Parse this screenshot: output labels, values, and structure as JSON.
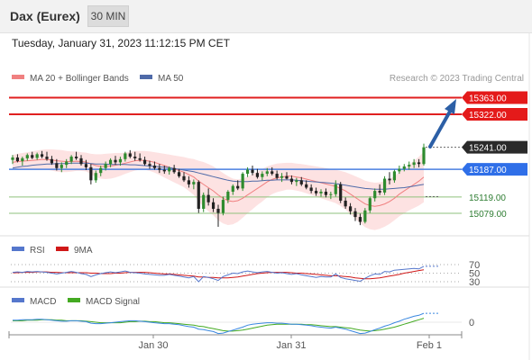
{
  "header": {
    "instrument": "Dax (Eurex)",
    "timeframe": "30 MIN",
    "datetime": "Tuesday, January 31, 2023 11:12:15 PM CET"
  },
  "legend": {
    "ma20": "MA 20 + Bollinger Bands",
    "ma50": "MA 50",
    "credit": "Research © 2023 Trading Central",
    "rsi": "RSI",
    "rsi_ma": "9MA",
    "macd": "MACD",
    "macd_signal": "MACD Signal"
  },
  "colors": {
    "up": "#2e8b2e",
    "down": "#222222",
    "resistance": "#e02020",
    "ma20": "#f08080",
    "ma50": "#4f6aa8",
    "band": "#fde2e2",
    "support": "#8fc27c",
    "blue_level": "#4a7fe0",
    "arrow": "#2c5fa6",
    "rsi": "#5577cc",
    "rsi_ma": "#d01818",
    "macd": "#3a88e0",
    "macd_signal": "#44aa22"
  },
  "chart_data": [
    {
      "type": "candlestick",
      "title": "Dax (Eurex)",
      "x_tick_labels": [
        "Jan 30",
        "Jan 31",
        "Feb 1"
      ],
      "ylim": [
        15020,
        15385
      ],
      "levels": [
        {
          "label": "15363.00",
          "value": 15363,
          "kind": "resistance"
        },
        {
          "label": "15322.00",
          "value": 15322,
          "kind": "resistance"
        },
        {
          "label": "15241.00",
          "value": 15241,
          "kind": "last"
        },
        {
          "label": "15187.00",
          "value": 15187,
          "kind": "pivot"
        },
        {
          "label": "15119.00",
          "value": 15119,
          "kind": "support"
        },
        {
          "label": "15079.00",
          "value": 15079,
          "kind": "support"
        }
      ],
      "candles": [
        [
          15210,
          15222,
          15200,
          15216
        ],
        [
          15216,
          15224,
          15204,
          15207
        ],
        [
          15207,
          15218,
          15196,
          15214
        ],
        [
          15214,
          15226,
          15208,
          15222
        ],
        [
          15222,
          15230,
          15212,
          15215
        ],
        [
          15215,
          15228,
          15210,
          15224
        ],
        [
          15224,
          15232,
          15214,
          15218
        ],
        [
          15218,
          15230,
          15208,
          15212
        ],
        [
          15212,
          15220,
          15198,
          15202
        ],
        [
          15202,
          15212,
          15184,
          15190
        ],
        [
          15190,
          15204,
          15180,
          15198
        ],
        [
          15198,
          15212,
          15190,
          15206
        ],
        [
          15206,
          15222,
          15200,
          15218
        ],
        [
          15218,
          15230,
          15210,
          15214
        ],
        [
          15214,
          15222,
          15196,
          15200
        ],
        [
          15200,
          15210,
          15185,
          15192
        ],
        [
          15192,
          15200,
          15150,
          15160
        ],
        [
          15160,
          15184,
          15154,
          15178
        ],
        [
          15178,
          15196,
          15170,
          15190
        ],
        [
          15190,
          15206,
          15184,
          15200
        ],
        [
          15200,
          15214,
          15192,
          15210
        ],
        [
          15210,
          15220,
          15198,
          15204
        ],
        [
          15204,
          15218,
          15196,
          15212
        ],
        [
          15212,
          15230,
          15206,
          15226
        ],
        [
          15226,
          15234,
          15214,
          15218
        ],
        [
          15218,
          15230,
          15208,
          15214
        ],
        [
          15214,
          15226,
          15206,
          15210
        ],
        [
          15210,
          15218,
          15196,
          15200
        ],
        [
          15200,
          15208,
          15188,
          15196
        ],
        [
          15196,
          15206,
          15186,
          15190
        ],
        [
          15190,
          15200,
          15178,
          15186
        ],
        [
          15186,
          15196,
          15176,
          15182
        ],
        [
          15182,
          15194,
          15174,
          15190
        ],
        [
          15190,
          15198,
          15176,
          15180
        ],
        [
          15180,
          15188,
          15166,
          15170
        ],
        [
          15170,
          15180,
          15156,
          15160
        ],
        [
          15160,
          15170,
          15142,
          15150
        ],
        [
          15150,
          15162,
          15138,
          15156
        ],
        [
          15156,
          15160,
          15080,
          15090
        ],
        [
          15090,
          15130,
          15082,
          15124
        ],
        [
          15124,
          15140,
          15098,
          15106
        ],
        [
          15106,
          15116,
          15082,
          15090
        ],
        [
          15090,
          15100,
          15046,
          15080
        ],
        [
          15080,
          15120,
          15074,
          15112
        ],
        [
          15112,
          15136,
          15104,
          15132
        ],
        [
          15132,
          15150,
          15124,
          15146
        ],
        [
          15146,
          15160,
          15136,
          15140
        ],
        [
          15140,
          15180,
          15134,
          15176
        ],
        [
          15176,
          15192,
          15168,
          15186
        ],
        [
          15186,
          15196,
          15172,
          15178
        ],
        [
          15178,
          15188,
          15164,
          15168
        ],
        [
          15168,
          15182,
          15160,
          15176
        ],
        [
          15176,
          15190,
          15170,
          15182
        ],
        [
          15182,
          15192,
          15172,
          15176
        ],
        [
          15176,
          15184,
          15162,
          15166
        ],
        [
          15166,
          15178,
          15156,
          15170
        ],
        [
          15170,
          15180,
          15162,
          15164
        ],
        [
          15164,
          15172,
          15150,
          15156
        ],
        [
          15156,
          15166,
          15146,
          15160
        ],
        [
          15160,
          15168,
          15146,
          15150
        ],
        [
          15150,
          15160,
          15138,
          15142
        ],
        [
          15142,
          15150,
          15128,
          15134
        ],
        [
          15134,
          15142,
          15122,
          15128
        ],
        [
          15128,
          15138,
          15120,
          15132
        ],
        [
          15132,
          15140,
          15118,
          15124
        ],
        [
          15124,
          15132,
          15114,
          15126
        ],
        [
          15126,
          15160,
          15120,
          15150
        ],
        [
          15150,
          15156,
          15104,
          15110
        ],
        [
          15110,
          15118,
          15090,
          15096
        ],
        [
          15096,
          15104,
          15076,
          15084
        ],
        [
          15084,
          15092,
          15060,
          15070
        ],
        [
          15070,
          15078,
          15050,
          15058
        ],
        [
          15058,
          15092,
          15054,
          15086
        ],
        [
          15086,
          15120,
          15080,
          15116
        ],
        [
          15116,
          15140,
          15108,
          15134
        ],
        [
          15134,
          15150,
          15124,
          15130
        ],
        [
          15130,
          15170,
          15124,
          15164
        ],
        [
          15164,
          15180,
          15150,
          15160
        ],
        [
          15160,
          15186,
          15154,
          15182
        ],
        [
          15182,
          15196,
          15176,
          15188
        ],
        [
          15188,
          15200,
          15182,
          15194
        ],
        [
          15194,
          15206,
          15186,
          15198
        ],
        [
          15198,
          15212,
          15190,
          15204
        ],
        [
          15204,
          15212,
          15192,
          15200
        ],
        [
          15200,
          15250,
          15196,
          15241
        ]
      ],
      "ma20": [
        15204,
        15206,
        15207,
        15208,
        15209,
        15210,
        15211,
        15211,
        15210,
        15208,
        15207,
        15206,
        15206,
        15207,
        15206,
        15205,
        15200,
        15196,
        15194,
        15194,
        15195,
        15197,
        15199,
        15202,
        15205,
        15208,
        15209,
        15209,
        15207,
        15204,
        15200,
        15196,
        15192,
        15188,
        15184,
        15180,
        15174,
        15168,
        15158,
        15150,
        15142,
        15134,
        15124,
        15116,
        15110,
        15108,
        15110,
        15116,
        15124,
        15132,
        15140,
        15148,
        15156,
        15162,
        15166,
        15168,
        15170,
        15170,
        15168,
        15166,
        15163,
        15160,
        15157,
        15154,
        15151,
        15148,
        15145,
        15140,
        15134,
        15126,
        15118,
        15110,
        15102,
        15098,
        15096,
        15098,
        15102,
        15108,
        15116,
        15126,
        15134,
        15142,
        15150,
        15158,
        15168
      ],
      "ma50": [
        15190,
        15192,
        15194,
        15195,
        15197,
        15198,
        15199,
        15200,
        15200,
        15201,
        15201,
        15201,
        15202,
        15202,
        15202,
        15202,
        15201,
        15200,
        15200,
        15200,
        15199,
        15199,
        15199,
        15199,
        15198,
        15198,
        15197,
        15196,
        15195,
        15194,
        15193,
        15192,
        15191,
        15189,
        15187,
        15185,
        15183,
        15181,
        15178,
        15175,
        15172,
        15169,
        15166,
        15163,
        15160,
        15158,
        15157,
        15157,
        15157,
        15158,
        15158,
        15159,
        15160,
        15160,
        15161,
        15161,
        15161,
        15161,
        15160,
        15159,
        15158,
        15157,
        15156,
        15155,
        15154,
        15153,
        15152,
        15150,
        15148,
        15146,
        15144,
        15142,
        15140,
        15139,
        15138,
        15138,
        15138,
        15139,
        15140,
        15141,
        15142,
        15144,
        15146,
        15148,
        15150
      ]
    },
    {
      "type": "line",
      "title": "RSI",
      "tick_labels": [
        "70",
        "50",
        "30"
      ],
      "ylim": [
        20,
        80
      ],
      "series": [
        {
          "name": "RSI",
          "values": [
            52,
            53,
            52,
            54,
            53,
            54,
            53,
            52,
            50,
            48,
            50,
            52,
            54,
            52,
            49,
            47,
            42,
            46,
            49,
            51,
            53,
            51,
            53,
            55,
            52,
            51,
            50,
            48,
            47,
            46,
            45,
            45,
            47,
            45,
            43,
            41,
            39,
            42,
            30,
            42,
            40,
            37,
            33,
            42,
            46,
            50,
            49,
            53,
            55,
            53,
            51,
            53,
            54,
            52,
            50,
            51,
            49,
            47,
            49,
            46,
            44,
            42,
            40,
            42,
            41,
            41,
            48,
            40,
            37,
            35,
            33,
            31,
            38,
            44,
            48,
            47,
            54,
            53,
            57,
            58,
            59,
            60,
            61,
            60,
            66
          ]
        },
        {
          "name": "9MA",
          "values": [
            51,
            51,
            52,
            52,
            52,
            53,
            53,
            53,
            52,
            52,
            51,
            51,
            51,
            51,
            51,
            51,
            50,
            50,
            49,
            49,
            49,
            50,
            50,
            51,
            52,
            52,
            52,
            52,
            51,
            50,
            49,
            48,
            48,
            47,
            46,
            45,
            44,
            43,
            41,
            41,
            40,
            40,
            39,
            39,
            39,
            40,
            41,
            43,
            45,
            47,
            49,
            50,
            51,
            52,
            52,
            52,
            52,
            51,
            50,
            50,
            49,
            48,
            47,
            46,
            45,
            44,
            44,
            43,
            42,
            41,
            39,
            38,
            37,
            37,
            38,
            39,
            41,
            43,
            45,
            47,
            50,
            52,
            54,
            56,
            58
          ]
        }
      ]
    },
    {
      "type": "line",
      "title": "MACD",
      "tick_labels": [
        "0"
      ],
      "ylim": [
        -40,
        40
      ],
      "series": [
        {
          "name": "MACD",
          "values": [
            4,
            4,
            5,
            5,
            5,
            6,
            6,
            5,
            4,
            3,
            2,
            2,
            3,
            3,
            2,
            1,
            -2,
            -3,
            -3,
            -2,
            -1,
            0,
            1,
            2,
            3,
            3,
            2,
            1,
            0,
            -1,
            -2,
            -3,
            -3,
            -4,
            -5,
            -7,
            -9,
            -10,
            -14,
            -15,
            -17,
            -19,
            -23,
            -22,
            -19,
            -16,
            -13,
            -10,
            -6,
            -4,
            -3,
            -2,
            -1,
            -1,
            -2,
            -2,
            -3,
            -4,
            -4,
            -5,
            -6,
            -7,
            -9,
            -10,
            -11,
            -12,
            -10,
            -12,
            -14,
            -17,
            -20,
            -23,
            -22,
            -19,
            -15,
            -12,
            -8,
            -5,
            -1,
            2,
            6,
            9,
            12,
            14,
            18
          ]
        },
        {
          "name": "MACD Signal",
          "values": [
            3,
            3,
            3,
            4,
            4,
            4,
            5,
            5,
            5,
            4,
            4,
            3,
            3,
            3,
            3,
            2,
            1,
            0,
            -1,
            -1,
            -1,
            -1,
            -1,
            0,
            1,
            1,
            2,
            2,
            1,
            1,
            0,
            -1,
            -1,
            -2,
            -3,
            -4,
            -5,
            -6,
            -8,
            -9,
            -11,
            -13,
            -15,
            -17,
            -18,
            -18,
            -17,
            -16,
            -14,
            -12,
            -10,
            -8,
            -6,
            -5,
            -4,
            -4,
            -4,
            -4,
            -4,
            -4,
            -5,
            -5,
            -6,
            -7,
            -8,
            -9,
            -9,
            -10,
            -11,
            -12,
            -14,
            -16,
            -17,
            -18,
            -17,
            -16,
            -14,
            -12,
            -10,
            -7,
            -4,
            -1,
            2,
            5,
            8
          ]
        }
      ]
    }
  ]
}
